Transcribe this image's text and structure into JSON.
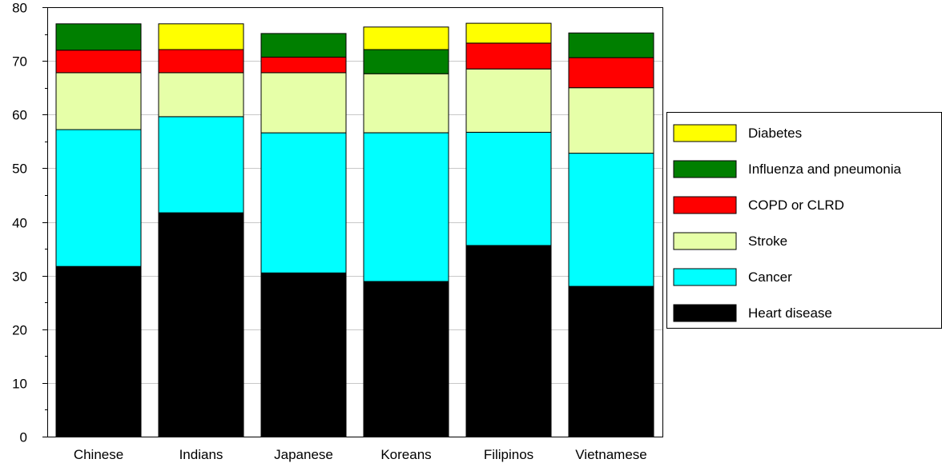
{
  "chart_data": {
    "type": "bar",
    "stacked": true,
    "categories": [
      "Chinese",
      "Indians",
      "Japanese",
      "Koreans",
      "Filipinos",
      "Vietnamese"
    ],
    "series": [
      {
        "name": "Heart disease",
        "color": "#000000",
        "values": [
          31.7,
          41.7,
          30.5,
          28.9,
          35.6,
          28.0
        ]
      },
      {
        "name": "Cancer",
        "color": "#00ffff",
        "values": [
          25.5,
          17.9,
          26.1,
          27.7,
          21.1,
          24.8
        ]
      },
      {
        "name": "Stroke",
        "color": "#e6ffa8",
        "values": [
          10.6,
          8.2,
          11.2,
          11.0,
          11.8,
          12.2
        ]
      },
      {
        "name": "COPD or CLRD",
        "color": "#ff0000",
        "values": [
          4.2,
          4.3,
          2.9,
          0,
          4.8,
          5.6
        ]
      },
      {
        "name": "Influenza and pneumonia",
        "color": "#007f00",
        "values": [
          4.9,
          0,
          4.4,
          4.5,
          0,
          4.6
        ]
      },
      {
        "name": "Diabetes",
        "color": "#ffff00",
        "values": [
          0,
          4.8,
          0,
          4.2,
          3.7,
          0
        ]
      }
    ],
    "legend_order": [
      "Diabetes",
      "Influenza and pneumonia",
      "COPD or CLRD",
      "Stroke",
      "Cancer",
      "Heart disease"
    ],
    "legend_position": "right",
    "title": "",
    "xlabel": "",
    "ylabel": "",
    "ylim": [
      0,
      80
    ],
    "yticks": [
      0,
      10,
      20,
      30,
      40,
      50,
      60,
      70,
      80
    ],
    "grid": true
  }
}
